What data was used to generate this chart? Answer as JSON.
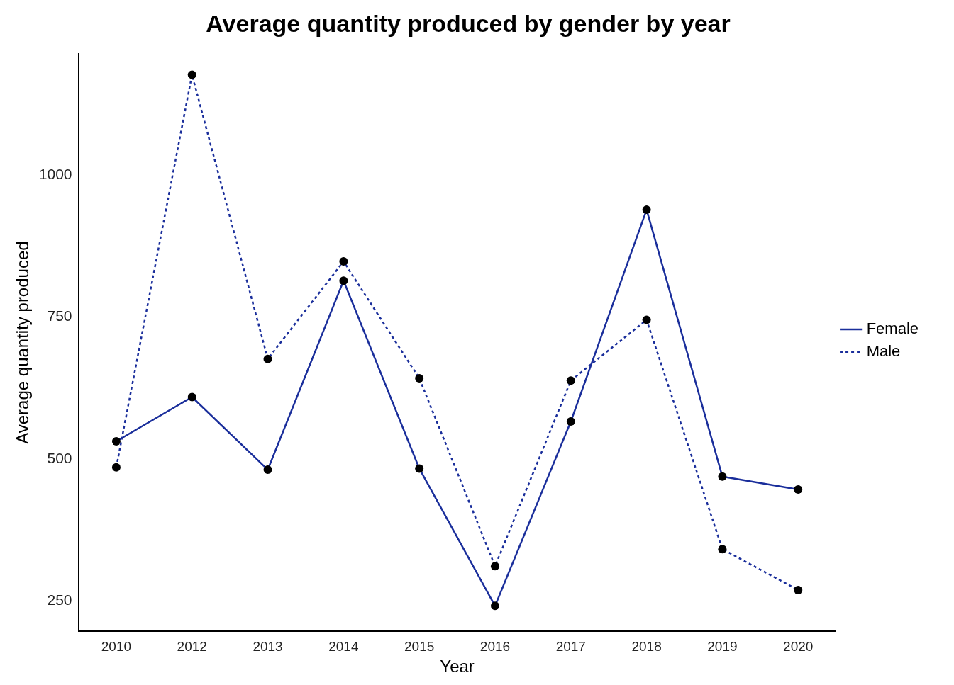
{
  "chart_data": {
    "type": "line",
    "title": "Average quantity produced by gender by year",
    "xlabel": "Year",
    "ylabel": "Average quantity produced",
    "categories": [
      "2010",
      "2012",
      "2013",
      "2014",
      "2015",
      "2016",
      "2017",
      "2018",
      "2019",
      "2020"
    ],
    "series": [
      {
        "name": "Female",
        "color": "#1a2e9b",
        "line_style": "solid",
        "values": [
          531,
          609,
          481,
          814,
          483,
          241,
          566,
          939,
          469,
          446
        ]
      },
      {
        "name": "Male",
        "color": "#1a2e9b",
        "line_style": "dotted",
        "values": [
          485,
          1177,
          676,
          848,
          642,
          311,
          638,
          745,
          341,
          269
        ]
      }
    ],
    "ylim": [
      196,
      1214
    ],
    "yticks": [
      250,
      500,
      750,
      1000
    ],
    "grid": false,
    "legend": "right",
    "marker": "circle"
  }
}
